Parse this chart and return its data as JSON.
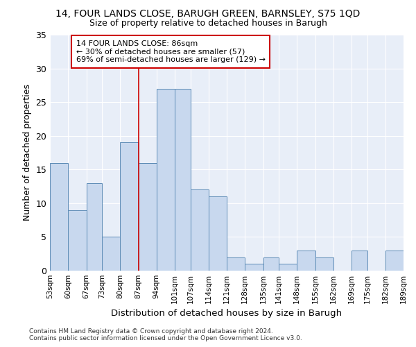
{
  "title1": "14, FOUR LANDS CLOSE, BARUGH GREEN, BARNSLEY, S75 1QD",
  "title2": "Size of property relative to detached houses in Barugh",
  "xlabel": "Distribution of detached houses by size in Barugh",
  "ylabel": "Number of detached properties",
  "bar_color": "#c8d8ee",
  "bar_edge_color": "#5b8ab5",
  "bins": [
    53,
    60,
    67,
    73,
    80,
    87,
    94,
    101,
    107,
    114,
    121,
    128,
    135,
    141,
    148,
    155,
    162,
    169,
    175,
    182,
    189
  ],
  "counts": [
    16,
    9,
    13,
    5,
    19,
    16,
    27,
    27,
    12,
    11,
    2,
    1,
    2,
    1,
    3,
    2,
    0,
    3,
    0,
    3
  ],
  "tick_labels": [
    "53sqm",
    "60sqm",
    "67sqm",
    "73sqm",
    "80sqm",
    "87sqm",
    "94sqm",
    "101sqm",
    "107sqm",
    "114sqm",
    "121sqm",
    "128sqm",
    "135sqm",
    "141sqm",
    "148sqm",
    "155sqm",
    "162sqm",
    "169sqm",
    "175sqm",
    "182sqm",
    "189sqm"
  ],
  "vline_x": 87,
  "vline_color": "#cc0000",
  "annotation_text": "14 FOUR LANDS CLOSE: 86sqm\n← 30% of detached houses are smaller (57)\n69% of semi-detached houses are larger (129) →",
  "annotation_box_color": "#ffffff",
  "annotation_box_edge": "#cc0000",
  "ylim": [
    0,
    35
  ],
  "yticks": [
    0,
    5,
    10,
    15,
    20,
    25,
    30,
    35
  ],
  "footer": "Contains HM Land Registry data © Crown copyright and database right 2024.\nContains public sector information licensed under the Open Government Licence v3.0.",
  "bg_color": "#ffffff",
  "plot_bg": "#e8eef8"
}
